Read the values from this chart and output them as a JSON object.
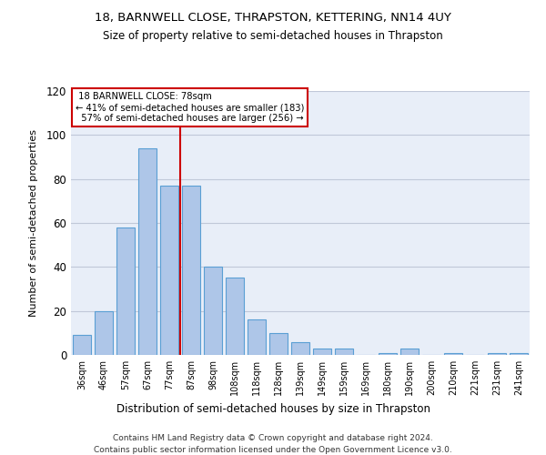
{
  "title": "18, BARNWELL CLOSE, THRAPSTON, KETTERING, NN14 4UY",
  "subtitle": "Size of property relative to semi-detached houses in Thrapston",
  "xlabel": "Distribution of semi-detached houses by size in Thrapston",
  "ylabel": "Number of semi-detached properties",
  "bin_labels": [
    "36sqm",
    "46sqm",
    "57sqm",
    "67sqm",
    "77sqm",
    "87sqm",
    "98sqm",
    "108sqm",
    "118sqm",
    "128sqm",
    "139sqm",
    "149sqm",
    "159sqm",
    "169sqm",
    "180sqm",
    "190sqm",
    "200sqm",
    "210sqm",
    "221sqm",
    "231sqm",
    "241sqm"
  ],
  "bin_values": [
    9,
    20,
    58,
    94,
    77,
    77,
    40,
    35,
    16,
    10,
    6,
    3,
    3,
    0,
    1,
    3,
    0,
    1,
    0,
    1,
    1
  ],
  "bar_color": "#aec6e8",
  "bar_edge_color": "#5a9fd4",
  "property_label": "18 BARNWELL CLOSE: 78sqm",
  "pct_smaller": 41,
  "pct_larger": 57,
  "n_smaller": 183,
  "n_larger": 256,
  "annotation_box_color": "#cc0000",
  "vline_color": "#cc0000",
  "vline_x": 4.5,
  "ylim": [
    0,
    120
  ],
  "yticks": [
    0,
    20,
    40,
    60,
    80,
    100,
    120
  ],
  "grid_color": "#c0c8d8",
  "background_color": "#e8eef8",
  "footer_line1": "Contains HM Land Registry data © Crown copyright and database right 2024.",
  "footer_line2": "Contains public sector information licensed under the Open Government Licence v3.0."
}
